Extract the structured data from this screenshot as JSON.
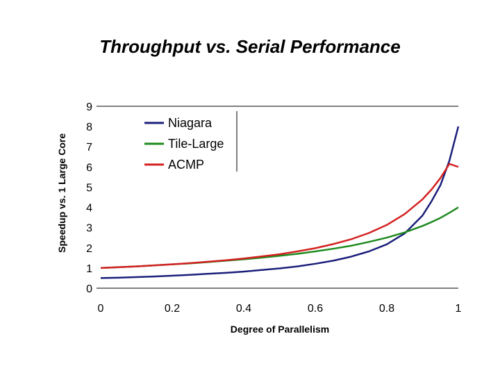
{
  "chart_data": {
    "type": "line",
    "title": "Throughput vs. Serial Performance",
    "xlabel": "Degree of Parallelism",
    "ylabel": "Speedup vs. 1 Large Core",
    "xlim": [
      0,
      1
    ],
    "ylim": [
      0,
      9
    ],
    "x_ticks": [
      "0",
      "0.2",
      "0.4",
      "0.6",
      "0.8",
      "1"
    ],
    "y_ticks": [
      "0",
      "1",
      "2",
      "3",
      "4",
      "5",
      "6",
      "7",
      "8",
      "9"
    ],
    "grid": "horizontal top line only",
    "legend_position": "top-left",
    "x": [
      0,
      0.05,
      0.1,
      0.15,
      0.2,
      0.25,
      0.3,
      0.35,
      0.4,
      0.45,
      0.5,
      0.55,
      0.6,
      0.65,
      0.7,
      0.75,
      0.8,
      0.85,
      0.9,
      0.925,
      0.95,
      0.975,
      1
    ],
    "series": [
      {
        "name": "Niagara",
        "color": "#1a1f7a",
        "values": [
          0.5,
          0.52,
          0.55,
          0.58,
          0.62,
          0.66,
          0.71,
          0.76,
          0.82,
          0.9,
          0.98,
          1.08,
          1.21,
          1.36,
          1.56,
          1.82,
          2.17,
          2.71,
          3.6,
          4.3,
          5.1,
          6.3,
          8.0
        ]
      },
      {
        "name": "Tile-Large",
        "color": "#1e8a1e",
        "values": [
          1.0,
          1.04,
          1.08,
          1.13,
          1.18,
          1.23,
          1.29,
          1.36,
          1.43,
          1.51,
          1.6,
          1.7,
          1.82,
          1.95,
          2.1,
          2.29,
          2.5,
          2.76,
          3.08,
          3.27,
          3.48,
          3.73,
          4.0
        ]
      },
      {
        "name": "ACMP",
        "color": "#d42020",
        "values": [
          1.0,
          1.04,
          1.08,
          1.13,
          1.18,
          1.24,
          1.31,
          1.38,
          1.47,
          1.57,
          1.68,
          1.82,
          1.98,
          2.18,
          2.42,
          2.73,
          3.13,
          3.67,
          4.4,
          4.88,
          5.45,
          6.15,
          6.0
        ]
      }
    ]
  }
}
